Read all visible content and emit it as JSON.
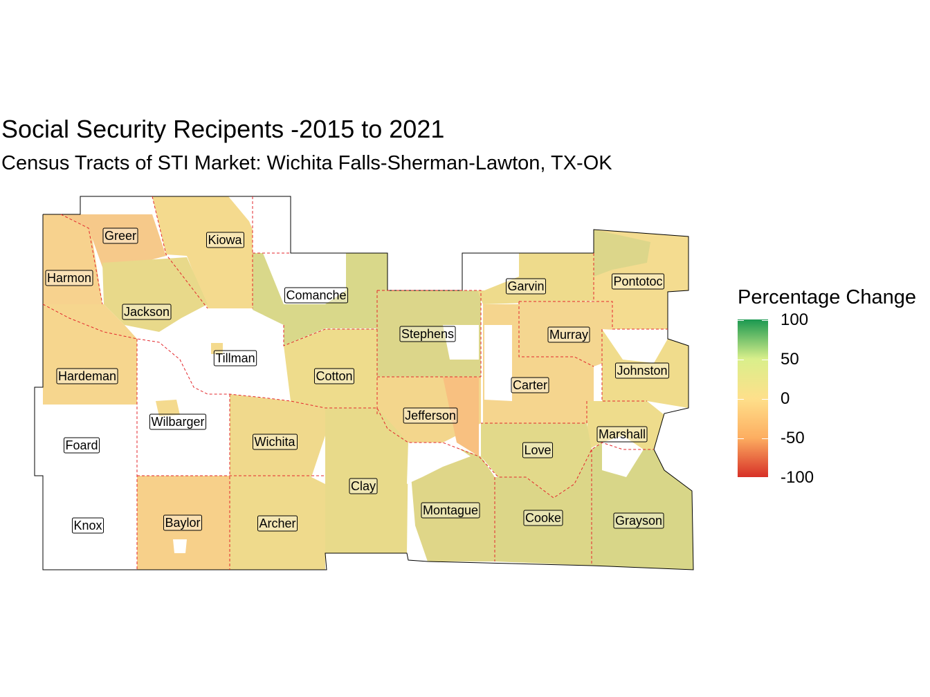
{
  "title": "Social Security Recipents -2015 to 2021",
  "subtitle": "Census Tracts of STI Market: Wichita Falls-Sherman-Lawton, TX-OK",
  "legend": {
    "title": "Percentage Change",
    "ticks": [
      "100",
      "50",
      "0",
      "-50",
      "-100"
    ],
    "scale": {
      "min": -100,
      "max": 100
    },
    "colors": {
      "high": "#1a9850",
      "mid": "#fee08b",
      "low": "#d73027"
    }
  },
  "counties": [
    {
      "name": "Greer"
    },
    {
      "name": "Kiowa"
    },
    {
      "name": "Harmon"
    },
    {
      "name": "Jackson"
    },
    {
      "name": "Comanche"
    },
    {
      "name": "Garvin"
    },
    {
      "name": "Pontotoc"
    },
    {
      "name": "Stephens"
    },
    {
      "name": "Murray"
    },
    {
      "name": "Tillman"
    },
    {
      "name": "Johnston"
    },
    {
      "name": "Hardeman"
    },
    {
      "name": "Cotton"
    },
    {
      "name": "Carter"
    },
    {
      "name": "Jefferson"
    },
    {
      "name": "Wilbarger"
    },
    {
      "name": "Marshall"
    },
    {
      "name": "Foard"
    },
    {
      "name": "Wichita"
    },
    {
      "name": "Love"
    },
    {
      "name": "Clay"
    },
    {
      "name": "Montague"
    },
    {
      "name": "Cooke"
    },
    {
      "name": "Grayson"
    },
    {
      "name": "Knox"
    },
    {
      "name": "Baylor"
    },
    {
      "name": "Archer"
    }
  ]
}
